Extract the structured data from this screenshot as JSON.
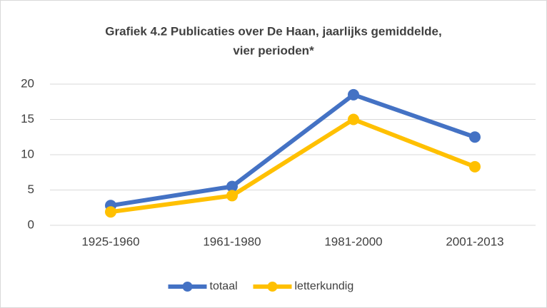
{
  "chart_data": {
    "type": "line",
    "title": "Grafiek 4.2 Publicaties over De Haan, jaarlijks gemiddelde,",
    "subtitle": "vier perioden*",
    "categories": [
      "1925-1960",
      "1961-1980",
      "1981-2000",
      "2001-2013"
    ],
    "series": [
      {
        "name": "totaal",
        "color": "#4472c4",
        "values": [
          2.8,
          5.5,
          18.5,
          12.5
        ]
      },
      {
        "name": "letterkundig",
        "color": "#ffc000",
        "values": [
          1.9,
          4.2,
          15,
          8.3
        ]
      }
    ],
    "ylim": [
      0,
      20
    ],
    "yticks": [
      0,
      5,
      10,
      15,
      20
    ],
    "grid": true,
    "legend": "bottom"
  }
}
